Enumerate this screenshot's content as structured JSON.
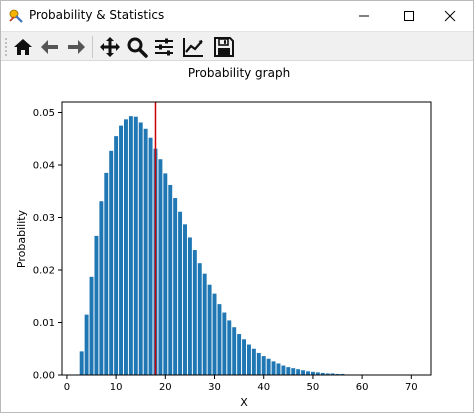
{
  "window": {
    "title": "Probability & Statistics",
    "accent": "#1f77b4",
    "marker_color": "#cc0000"
  },
  "toolbar": {
    "tools": [
      {
        "name": "home",
        "icon": "home-icon"
      },
      {
        "name": "back",
        "icon": "arrow-left-icon"
      },
      {
        "name": "forward",
        "icon": "arrow-right-icon"
      },
      {
        "name": "pan",
        "icon": "move-icon"
      },
      {
        "name": "zoom",
        "icon": "magnifier-icon"
      },
      {
        "name": "subplots",
        "icon": "sliders-icon"
      },
      {
        "name": "edit-axis",
        "icon": "line-chart-icon"
      },
      {
        "name": "save",
        "icon": "save-icon"
      }
    ]
  },
  "chart_data": {
    "type": "bar",
    "title": "Probability graph",
    "xlabel": "X",
    "ylabel": "Probability",
    "xlim": [
      -1,
      74
    ],
    "ylim": [
      0,
      0.052
    ],
    "xticks": [
      0,
      10,
      20,
      30,
      40,
      50,
      60,
      70
    ],
    "xtick_labels": [
      "0",
      "10",
      "20",
      "30",
      "40",
      "50",
      "60",
      "70"
    ],
    "yticks": [
      0,
      0.01,
      0.02,
      0.03,
      0.04,
      0.05
    ],
    "ytick_labels": [
      "0.00",
      "0.01",
      "0.02",
      "0.03",
      "0.04",
      "0.05"
    ],
    "bar_color": "#1f77b4",
    "vline": {
      "x": 18,
      "color": "#cc0000"
    },
    "grid": false,
    "x": [
      2,
      3,
      4,
      5,
      6,
      7,
      8,
      9,
      10,
      11,
      12,
      13,
      14,
      15,
      16,
      17,
      18,
      19,
      20,
      21,
      22,
      23,
      24,
      25,
      26,
      27,
      28,
      29,
      30,
      31,
      32,
      33,
      34,
      35,
      36,
      37,
      38,
      39,
      40,
      41,
      42,
      43,
      44,
      45,
      46,
      47,
      48,
      49,
      50,
      51,
      52,
      53,
      54,
      55,
      56,
      57,
      58,
      59,
      60,
      61,
      62,
      63,
      64,
      65,
      66,
      67,
      68,
      69,
      70
    ],
    "values": [
      0.0001,
      0.0045,
      0.0115,
      0.0187,
      0.0265,
      0.0331,
      0.0385,
      0.0427,
      0.0455,
      0.0475,
      0.0487,
      0.0493,
      0.0492,
      0.0481,
      0.0469,
      0.0452,
      0.0431,
      0.0411,
      0.0384,
      0.0362,
      0.0337,
      0.0311,
      0.0287,
      0.0262,
      0.0238,
      0.0213,
      0.0193,
      0.0172,
      0.0155,
      0.0135,
      0.0119,
      0.0104,
      0.0091,
      0.0078,
      0.0068,
      0.0058,
      0.005,
      0.0042,
      0.0036,
      0.0031,
      0.0026,
      0.0022,
      0.0018,
      0.0015,
      0.0013,
      0.0011,
      0.0009,
      0.0007,
      0.0006,
      0.0005,
      0.0004,
      0.0003,
      0.0003,
      0.0002,
      0.0002,
      0.0001,
      0.0001,
      0.0001,
      0.0001,
      0.0001,
      0,
      0,
      0,
      0,
      0,
      0,
      0,
      0,
      0
    ]
  }
}
